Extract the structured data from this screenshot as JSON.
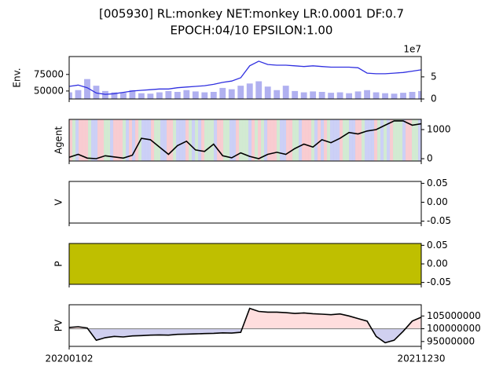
{
  "chart_data": [
    {
      "type": "line",
      "title": "[005930] RL:monkey NET:monkey LR:0.0001 DF:0.7",
      "subtitle": "EPOCH:04/10 EPSILON:1.00",
      "ylabel": "Env.",
      "ylim": [
        38000,
        102000
      ],
      "yticks": [
        50000,
        75000
      ],
      "y2lim": [
        0,
        96000000
      ],
      "y2ticks": [
        0,
        {
          "value": 50000000,
          "label": "5"
        }
      ],
      "y2_offset_label": "1e7",
      "series": [
        {
          "type": "bar",
          "axis": "y2",
          "color": "#b0b0f0",
          "values": [
            15000000,
            20000000,
            45000000,
            30000000,
            18000000,
            15000000,
            14000000,
            20000000,
            13000000,
            12000000,
            15000000,
            18000000,
            16000000,
            20000000,
            17000000,
            15000000,
            16000000,
            25000000,
            22000000,
            30000000,
            35000000,
            40000000,
            28000000,
            20000000,
            30000000,
            18000000,
            15000000,
            17000000,
            16000000,
            14000000,
            15000000,
            13000000,
            17000000,
            20000000,
            15000000,
            13000000,
            12000000,
            14000000,
            16000000,
            18000000
          ]
        },
        {
          "type": "line",
          "color": "#3030e0",
          "values": [
            57000,
            59000,
            55000,
            47000,
            45000,
            46000,
            48000,
            50000,
            51000,
            52000,
            53000,
            53000,
            55000,
            56000,
            57000,
            58000,
            60000,
            63000,
            65000,
            70000,
            88000,
            95000,
            90000,
            89000,
            89000,
            88000,
            87000,
            88000,
            87000,
            86000,
            86000,
            86000,
            85000,
            77000,
            76000,
            76000,
            77000,
            78000,
            80000,
            82000
          ]
        }
      ]
    },
    {
      "type": "line",
      "ylabel": "Agent",
      "ylim": [
        -80,
        1350
      ],
      "yticks": [
        0,
        1000
      ],
      "color": "#000000",
      "values": [
        50,
        150,
        20,
        0,
        100,
        60,
        20,
        120,
        700,
        650,
        400,
        150,
        450,
        600,
        300,
        250,
        500,
        100,
        30,
        200,
        80,
        0,
        150,
        220,
        150,
        350,
        500,
        400,
        650,
        550,
        700,
        900,
        850,
        950,
        1000,
        1150,
        1300,
        1300,
        1150,
        1200
      ]
    },
    {
      "type": "line",
      "ylabel": "V",
      "ylim": [
        -0.055,
        0.055
      ],
      "yticks": [
        -0.05,
        {
          "value": 0,
          "label": "0.00"
        },
        0.05
      ]
    },
    {
      "type": "area",
      "ylabel": "P",
      "ylim": [
        -0.055,
        0.055
      ],
      "yticks": [
        -0.05,
        {
          "value": 0,
          "label": "0.00"
        },
        0.05
      ],
      "color": "#bfbf00"
    },
    {
      "type": "line",
      "ylabel": "PV",
      "ylim": [
        93100000,
        109400000
      ],
      "yticks": [
        95000000,
        100000000,
        105000000
      ],
      "baseline": 100000000,
      "color": "#000000",
      "fill_above": "#ffdede",
      "fill_below": "#d0d0f0",
      "categories": [
        "20200102",
        null,
        null,
        null,
        null,
        null,
        null,
        null,
        null,
        null,
        null,
        null,
        null,
        null,
        null,
        null,
        null,
        null,
        null,
        null,
        null,
        null,
        null,
        null,
        null,
        null,
        null,
        null,
        null,
        null,
        null,
        null,
        null,
        null,
        null,
        null,
        null,
        null,
        null,
        "20211230"
      ],
      "values": [
        100500000,
        100800000,
        100300000,
        95500000,
        96500000,
        97000000,
        96800000,
        97200000,
        97300000,
        97500000,
        97600000,
        97500000,
        97800000,
        97900000,
        98000000,
        98100000,
        98200000,
        98400000,
        98300000,
        98600000,
        108000000,
        106800000,
        106500000,
        106500000,
        106300000,
        106000000,
        106200000,
        105900000,
        105700000,
        105500000,
        105800000,
        105000000,
        104000000,
        103000000,
        97000000,
        94500000,
        95500000,
        99000000,
        103000000,
        104500000
      ]
    }
  ]
}
